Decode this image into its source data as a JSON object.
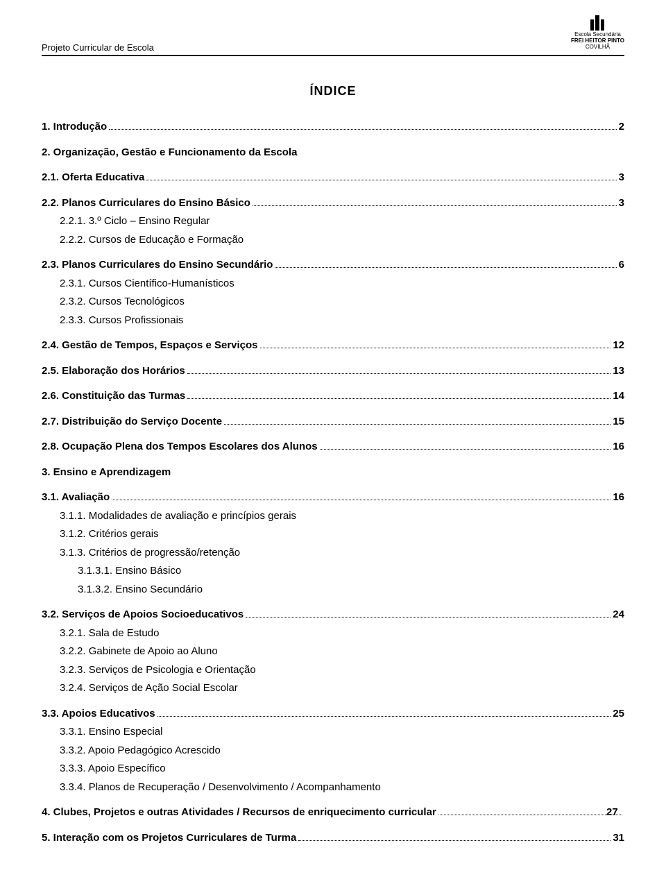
{
  "header": {
    "left": "Projeto Curricular de Escola",
    "logo": {
      "line1": "Escola Secundária",
      "line2": "FREI HEITOR PINTO",
      "line3": "COVILHÃ"
    }
  },
  "title": "ÍNDICE",
  "fonts": {
    "body_size": 15,
    "title_size": 18,
    "header_size": 13
  },
  "colors": {
    "text": "#000000",
    "bg": "#ffffff",
    "rule": "#000000"
  },
  "entries": [
    {
      "label": "1. Introdução",
      "page": "2",
      "bold": true,
      "mt": false
    },
    {
      "label": "2. Organização, Gestão e Funcionamento da Escola",
      "page": null,
      "bold": true,
      "mt": true
    },
    {
      "label": "2.1. Oferta Educativa",
      "page": "3",
      "bold": true,
      "mt": true
    },
    {
      "label": "2.2. Planos Curriculares do Ensino Básico",
      "page": "3",
      "bold": true,
      "mt": true
    },
    {
      "label": "2.2.1. 3.º Ciclo – Ensino Regular",
      "page": null,
      "bold": false,
      "indent": 1
    },
    {
      "label": "2.2.2. Cursos de Educação e Formação",
      "page": null,
      "bold": false,
      "indent": 1
    },
    {
      "label": "2.3. Planos Curriculares do Ensino Secundário",
      "page": "6",
      "bold": true,
      "mt": true
    },
    {
      "label": "2.3.1. Cursos Científico-Humanísticos",
      "page": null,
      "bold": false,
      "indent": 1
    },
    {
      "label": "2.3.2. Cursos Tecnológicos",
      "page": null,
      "bold": false,
      "indent": 1
    },
    {
      "label": "2.3.3. Cursos Profissionais",
      "page": null,
      "bold": false,
      "indent": 1
    },
    {
      "label": "2.4. Gestão de Tempos, Espaços e Serviços",
      "page": "12",
      "bold": true,
      "mt": true
    },
    {
      "label": "2.5. Elaboração dos Horários",
      "page": "13",
      "bold": true,
      "mt": true
    },
    {
      "label": "2.6. Constituição das Turmas",
      "page": "14",
      "bold": true,
      "mt": true
    },
    {
      "label": "2.7. Distribuição do Serviço Docente",
      "page": "15",
      "bold": true,
      "mt": true
    },
    {
      "label": "2.8. Ocupação Plena dos Tempos Escolares dos Alunos",
      "page": "16",
      "bold": true,
      "mt": true
    },
    {
      "label": "3. Ensino e Aprendizagem",
      "page": null,
      "bold": true,
      "mt": true
    },
    {
      "label": "3.1. Avaliação",
      "page": "16",
      "bold": true,
      "mt": true
    },
    {
      "label": "3.1.1. Modalidades de avaliação e princípios gerais",
      "page": null,
      "bold": false,
      "indent": 1
    },
    {
      "label": "3.1.2. Critérios gerais",
      "page": null,
      "bold": false,
      "indent": 1
    },
    {
      "label": "3.1.3. Critérios de progressão/retenção",
      "page": null,
      "bold": false,
      "indent": 1
    },
    {
      "label": "3.1.3.1. Ensino Básico",
      "page": null,
      "bold": false,
      "indent": 2
    },
    {
      "label": "3.1.3.2. Ensino Secundário",
      "page": null,
      "bold": false,
      "indent": 2
    },
    {
      "label": "3.2. Serviços de Apoios Socioeducativos",
      "page": "24",
      "bold": true,
      "mt": true
    },
    {
      "label": "3.2.1. Sala de Estudo",
      "page": null,
      "bold": false,
      "indent": 1
    },
    {
      "label": "3.2.2. Gabinete de Apoio ao Aluno",
      "page": null,
      "bold": false,
      "indent": 1
    },
    {
      "label": "3.2.3. Serviços de Psicologia e Orientação",
      "page": null,
      "bold": false,
      "indent": 1
    },
    {
      "label": "3.2.4. Serviços de Ação Social Escolar",
      "page": null,
      "bold": false,
      "indent": 1
    },
    {
      "label": "3.3. Apoios Educativos",
      "page": "25",
      "bold": true,
      "mt": true
    },
    {
      "label": "3.3.1. Ensino Especial",
      "page": null,
      "bold": false,
      "indent": 1
    },
    {
      "label": "3.3.2. Apoio Pedagógico Acrescido",
      "page": null,
      "bold": false,
      "indent": 1
    },
    {
      "label": "3.3.3. Apoio Específico",
      "page": null,
      "bold": false,
      "indent": 1
    },
    {
      "label": "3.3.4. Planos de Recuperação / Desenvolvimento / Acompanhamento",
      "page": null,
      "bold": false,
      "indent": 1
    },
    {
      "label": "4. Clubes, Projetos e outras Atividades / Recursos de enriquecimento curricular",
      "page": "27",
      "bold": true,
      "mt": true,
      "hanging": true
    },
    {
      "label": "5. Interação com os Projetos Curriculares de Turma",
      "page": "31",
      "bold": true,
      "mt": true
    }
  ]
}
